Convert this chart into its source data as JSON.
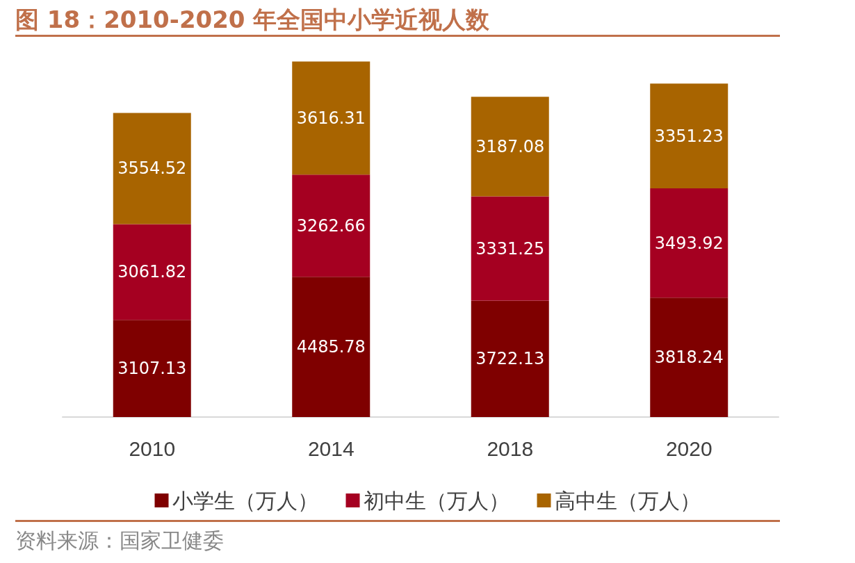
{
  "chart_data": {
    "type": "bar",
    "title": "图 18：2010-2020 年全国中小学近视人数",
    "categories": [
      "2010",
      "2014",
      "2018",
      "2020"
    ],
    "stacked": true,
    "data_labels": true,
    "legend": "bottom",
    "series": [
      {
        "name": "小学生（万人）",
        "color": "#7f0000",
        "values": [
          3107.13,
          4485.78,
          3722.13,
          3818.24
        ]
      },
      {
        "name": "初中生（万人）",
        "color": "#a50021",
        "values": [
          3061.82,
          3262.66,
          3331.25,
          3493.92
        ]
      },
      {
        "name": "高中生（万人）",
        "color": "#a86400",
        "values": [
          3554.52,
          3616.31,
          3187.08,
          3351.23
        ]
      }
    ],
    "annotations": [
      "资料来源：国家卫健委"
    ]
  }
}
